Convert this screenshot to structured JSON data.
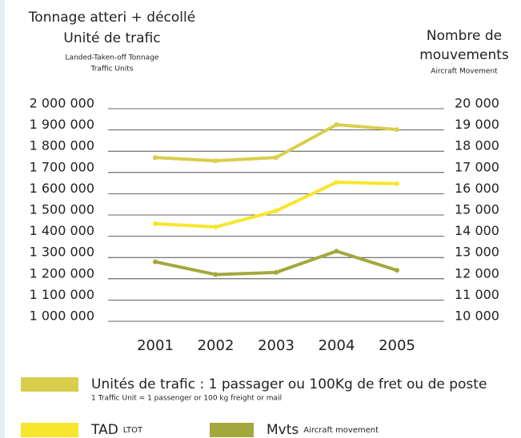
{
  "chart_data": {
    "type": "line",
    "title_left": [
      "Tonnage atteri + décollé",
      "Unité de trafic"
    ],
    "subtitle_left": [
      "Landed-Taken-off Tonnage",
      "Traffic Units"
    ],
    "title_right": [
      "Nombre de",
      "mouvements"
    ],
    "subtitle_right": "Aircraft Movement",
    "categories": [
      "2001",
      "2002",
      "2003",
      "2004",
      "2005"
    ],
    "series": [
      {
        "name": "Unités de trafic : 1 passager ou 100Kg de fret ou de poste",
        "note": "1 Traffic Unit = 1 passenger or 100 kg freight or mail",
        "color": "#d8ce4c",
        "values": [
          1770000,
          1755000,
          1770000,
          1925000,
          1902000
        ]
      },
      {
        "name": "TAD",
        "note": "LTOT",
        "color": "#f7e62c",
        "values": [
          1459000,
          1444000,
          1519000,
          1654000,
          1647000
        ]
      },
      {
        "name": "Mvts",
        "note": "Aircraft movement",
        "color": "#a3a83c",
        "axis": "y2",
        "values": [
          12800,
          12200,
          12300,
          13300,
          12400
        ]
      }
    ],
    "ylim": [
      1000000,
      2000000
    ],
    "yticks": [
      {
        "value": 1000000,
        "label": "1 000 000"
      },
      {
        "value": 1100000,
        "label": "1 100 000"
      },
      {
        "value": 1200000,
        "label": "1 200 000"
      },
      {
        "value": 1300000,
        "label": "1 300 000"
      },
      {
        "value": 1400000,
        "label": "1 400 000"
      },
      {
        "value": 1500000,
        "label": "1 500 000"
      },
      {
        "value": 1600000,
        "label": "1 600 000"
      },
      {
        "value": 1700000,
        "label": "1 700 000"
      },
      {
        "value": 1800000,
        "label": "1 800 000"
      },
      {
        "value": 1900000,
        "label": "1 900 000"
      },
      {
        "value": 2000000,
        "label": "2 000 000"
      }
    ],
    "y2lim": [
      10000,
      20000
    ],
    "y2ticks": [
      {
        "value": 10000,
        "label": "10 000"
      },
      {
        "value": 11000,
        "label": "11 000"
      },
      {
        "value": 12000,
        "label": "12 000"
      },
      {
        "value": 13000,
        "label": "13 000"
      },
      {
        "value": 14000,
        "label": "14 000"
      },
      {
        "value": 15000,
        "label": "15 000"
      },
      {
        "value": 16000,
        "label": "16 000"
      },
      {
        "value": 17000,
        "label": "17 000"
      },
      {
        "value": 18000,
        "label": "18 000"
      },
      {
        "value": 19000,
        "label": "19 000"
      },
      {
        "value": 20000,
        "label": "20 000"
      }
    ],
    "grid": true
  }
}
